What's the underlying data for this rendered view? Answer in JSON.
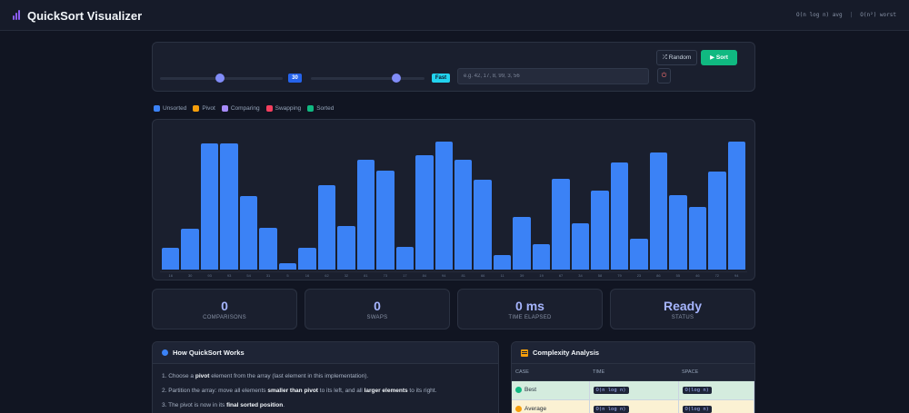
{
  "header": {
    "title": "QuickSort Visualizer",
    "avg_complexity": "O(n log n) avg",
    "worst_complexity": "O(n²) worst"
  },
  "controls": {
    "array_size": 30,
    "speed_label": "Fast",
    "input_placeholder": "e.g. 42, 17, 8, 99, 3, 56",
    "random_label": "Random",
    "sort_label": "Sort"
  },
  "legend": [
    {
      "label": "Unsorted",
      "color": "#3b82f6"
    },
    {
      "label": "Pivot",
      "color": "#f59e0b"
    },
    {
      "label": "Comparing",
      "color": "#a78bfa"
    },
    {
      "label": "Swapping",
      "color": "#f43f5e"
    },
    {
      "label": "Sorted",
      "color": "#10b981"
    }
  ],
  "chart_data": {
    "type": "bar",
    "values": [
      16,
      30,
      93,
      93,
      54,
      31,
      5,
      16,
      62,
      32,
      81,
      73,
      17,
      84,
      94,
      81,
      66,
      11,
      39,
      19,
      67,
      34,
      58,
      79,
      23,
      86,
      55,
      46,
      72,
      94
    ],
    "max": 94,
    "bar_color": "#3b82f6"
  },
  "stats": [
    {
      "value": "0",
      "label": "COMPARISONS"
    },
    {
      "value": "0",
      "label": "SWAPS"
    },
    {
      "value": "0 ms",
      "label": "TIME ELAPSED"
    },
    {
      "value": "Ready",
      "label": "STATUS"
    }
  ],
  "info": {
    "title": "How QuickSort Works",
    "step1_a": "1. Choose a ",
    "step1_b": "pivot",
    "step1_c": " element from the array (last element in this implementation).",
    "step2_a": "2. Partition the array: move all elements ",
    "step2_b": "smaller than pivot",
    "step2_c": " to its left, and all ",
    "step2_d": "larger elements",
    "step2_e": " to its right.",
    "step3_a": "3. The pivot is now in its ",
    "step3_b": "final sorted position",
    "step3_c": "."
  },
  "complexity": {
    "title": "Complexity Analysis",
    "columns": [
      "CASE",
      "TIME",
      "SPACE"
    ],
    "rows": [
      {
        "case": "Best",
        "time": "O(n log n)",
        "space": "O(log n)",
        "color": "#10b981"
      },
      {
        "case": "Average",
        "time": "O(n log n)",
        "space": "O(log n)",
        "color": "#f59e0b"
      }
    ]
  }
}
